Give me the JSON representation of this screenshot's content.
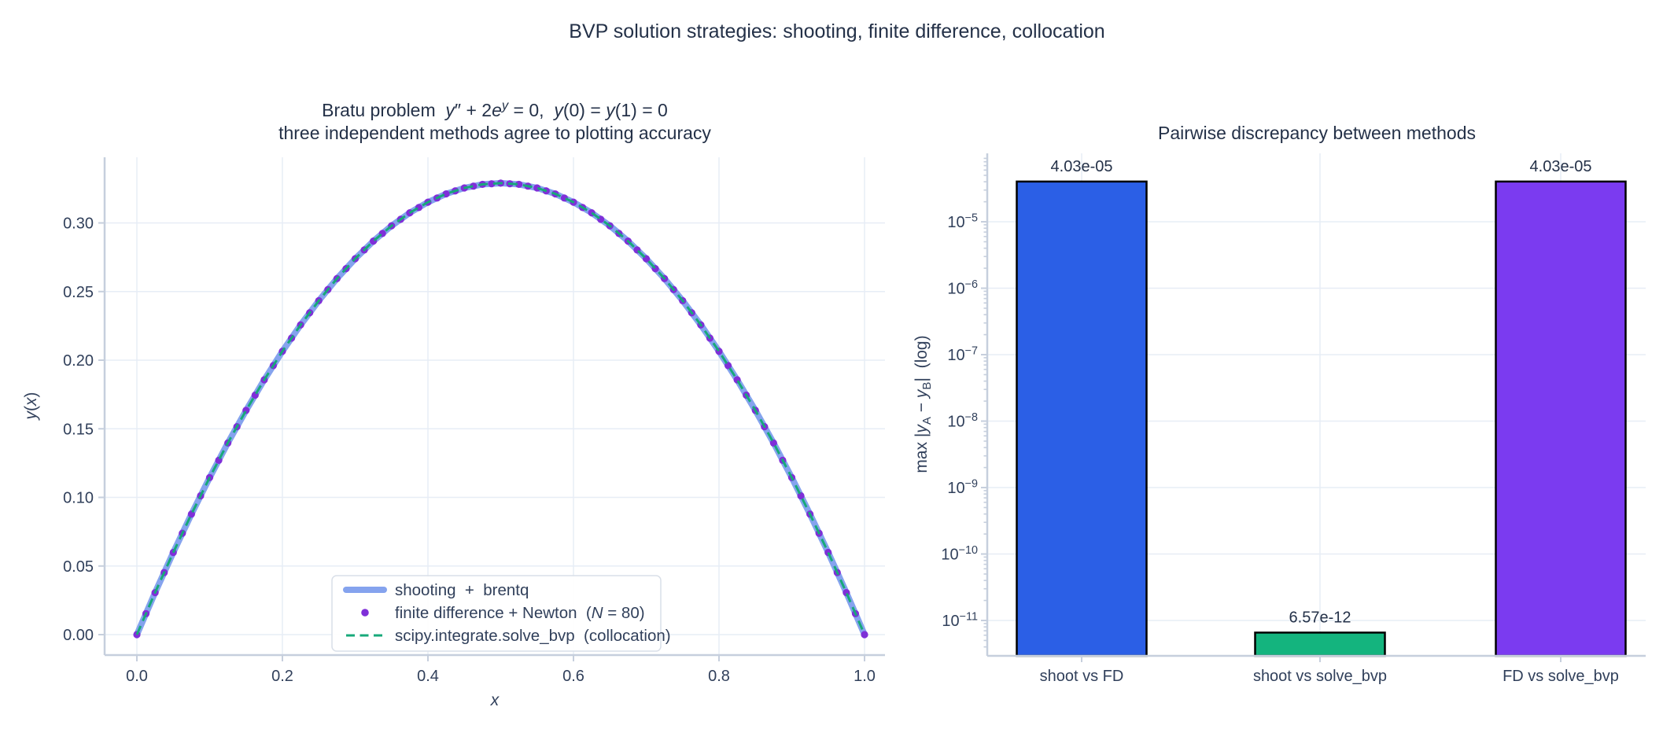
{
  "figure": {
    "suptitle": "BVP solution strategies: shooting, finite difference, collocation",
    "colors": {
      "bg": "#ffffff",
      "text": "#31405b",
      "title_text": "#243148",
      "grid": "#e7edf6",
      "spine": "#c6cfdd",
      "legend_border": "#d9dfe8"
    }
  },
  "chart_data": [
    {
      "type": "line",
      "title_rich": [
        {
          "t": "Bratu problem  "
        },
        {
          "t": "y",
          "i": 1
        },
        {
          "t": "″"
        },
        {
          "t": " + 2"
        },
        {
          "t": "e",
          "i": 1
        },
        {
          "t": "y",
          "i": 1,
          "sup": 1
        },
        {
          "t": " = 0,  "
        },
        {
          "t": "y",
          "i": 1
        },
        {
          "t": "(0) = "
        },
        {
          "t": "y",
          "i": 1
        },
        {
          "t": "(1) = 0"
        }
      ],
      "subtitle": "three independent methods agree to plotting accuracy",
      "xlabel_rich": [
        {
          "t": "x",
          "i": 1
        }
      ],
      "ylabel_rich": [
        {
          "t": "y",
          "i": 1
        },
        {
          "t": "("
        },
        {
          "t": "x",
          "i": 1
        },
        {
          "t": ")"
        }
      ],
      "xticks": [
        0.0,
        0.2,
        0.4,
        0.6,
        0.8,
        1.0
      ],
      "xtick_labels": [
        "0.0",
        "0.2",
        "0.4",
        "0.6",
        "0.8",
        "1.0"
      ],
      "yticks": [
        0.0,
        0.05,
        0.1,
        0.15,
        0.2,
        0.25,
        0.3
      ],
      "ytick_labels": [
        "0.00",
        "0.05",
        "0.10",
        "0.15",
        "0.20",
        "0.25",
        "0.30"
      ],
      "xlim": [
        -0.044,
        1.028
      ],
      "ylim": [
        -0.015,
        0.348
      ],
      "series": [
        {
          "kind": "line",
          "color": "#85a3ee",
          "width": 8,
          "label_rich": [
            {
              "t": "shooting  +  brentq"
            }
          ]
        },
        {
          "kind": "scatter",
          "color": "#7f2fd8",
          "radius": 4.6,
          "n_points": 81,
          "label_rich": [
            {
              "t": "finite difference + Newton  ("
            },
            {
              "t": "N",
              "i": 1
            },
            {
              "t": " = 80)"
            }
          ]
        },
        {
          "kind": "dashed",
          "color": "#17a97a",
          "width": 3,
          "label_rich": [
            {
              "t": "scipy.integrate.solve_bvp  (collocation)"
            }
          ]
        }
      ],
      "curve": {
        "x": [
          0.0,
          0.025,
          0.05,
          0.075,
          0.1,
          0.125,
          0.15,
          0.175,
          0.2,
          0.225,
          0.25,
          0.275,
          0.3,
          0.325,
          0.35,
          0.375,
          0.4,
          0.425,
          0.45,
          0.475,
          0.5,
          0.525,
          0.55,
          0.575,
          0.6,
          0.625,
          0.65,
          0.675,
          0.7,
          0.725,
          0.75,
          0.775,
          0.8,
          0.825,
          0.85,
          0.875,
          0.9,
          0.925,
          0.95,
          0.975,
          1.0
        ],
        "y": [
          0.0,
          0.03059,
          0.05988,
          0.08784,
          0.11444,
          0.13963,
          0.16339,
          0.18567,
          0.20645,
          0.2257,
          0.24337,
          0.25946,
          0.27392,
          0.28674,
          0.29791,
          0.30737,
          0.31513,
          0.32118,
          0.32552,
          0.32813,
          0.32899,
          0.32813,
          0.32552,
          0.32118,
          0.31513,
          0.30737,
          0.29791,
          0.28674,
          0.27392,
          0.25946,
          0.24337,
          0.2257,
          0.20645,
          0.18567,
          0.16339,
          0.13963,
          0.11444,
          0.08784,
          0.05988,
          0.03059,
          0.0
        ]
      }
    },
    {
      "type": "bar",
      "yscale": "log",
      "title": "Pairwise discrepancy between methods",
      "ylabel_rich": [
        {
          "t": "max |"
        },
        {
          "t": "y",
          "i": 1
        },
        {
          "t": "A",
          "sub": 1
        },
        {
          "t": " − "
        },
        {
          "t": "y",
          "i": 1
        },
        {
          "t": "B",
          "sub": 1
        },
        {
          "t": "|  (log)"
        }
      ],
      "categories": [
        "shoot vs FD",
        "shoot vs solve_bvp",
        "FD vs solve_bvp"
      ],
      "values": [
        4.03e-05,
        6.57e-12,
        4.03e-05
      ],
      "value_labels": [
        "4.03e-05",
        "6.57e-12",
        "4.03e-05"
      ],
      "bar_colors": [
        "#2b5fe6",
        "#14b47e",
        "#7b3bf0"
      ],
      "bar_edge_color": "#000000",
      "ytick_decades": [
        -5,
        -6,
        -7,
        -8,
        -9,
        -10,
        -11
      ],
      "ylim": [
        3e-12,
        9.5e-05
      ]
    }
  ]
}
